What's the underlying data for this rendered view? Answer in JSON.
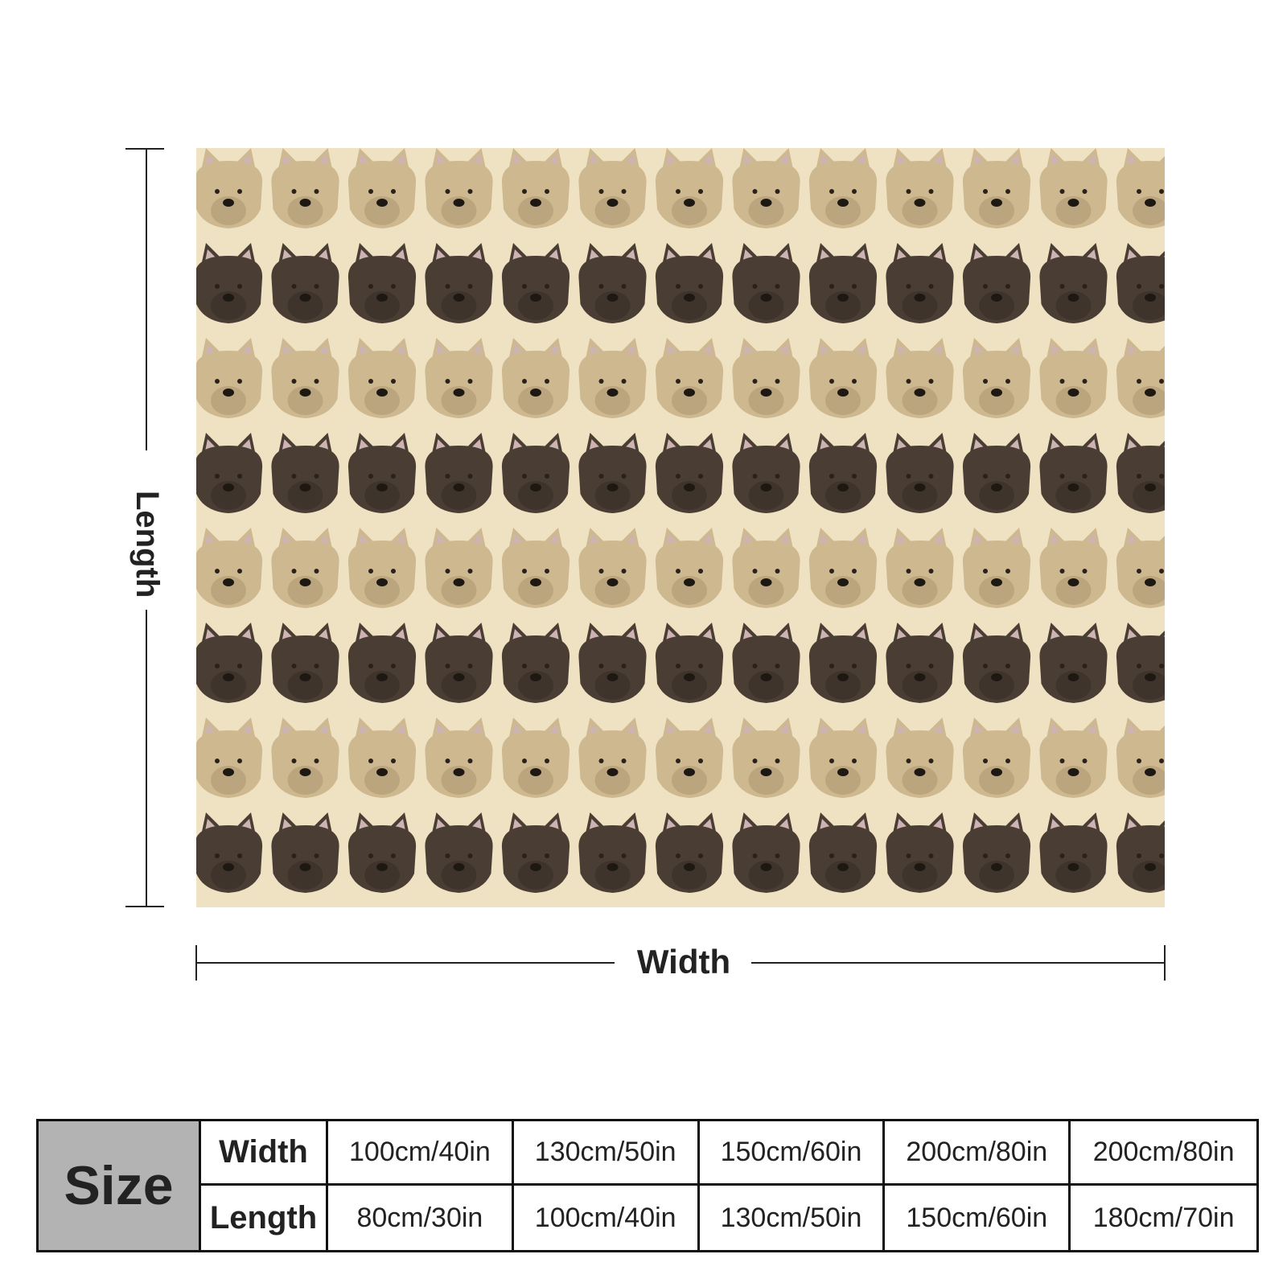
{
  "dimensions": {
    "length_label": "Length",
    "width_label": "Width"
  },
  "blanket": {
    "pattern_rows": 8,
    "pattern_cols": 13,
    "colors": {
      "background": "#efe2c2",
      "tan_dog": "#cdb88f",
      "tan_dog_shade": "#b29d76",
      "dark_dog": "#4a3e34",
      "dark_dog_shade": "#3a3029",
      "ear_inner": "#cdb4b3"
    }
  },
  "size_table": {
    "header": "Size",
    "rows": [
      {
        "label": "Width",
        "values": [
          "100cm/40in",
          "130cm/50in",
          "150cm/60in",
          "200cm/80in",
          "200cm/80in"
        ]
      },
      {
        "label": "Length",
        "values": [
          "80cm/30in",
          "100cm/40in",
          "130cm/50in",
          "150cm/60in",
          "180cm/70in"
        ]
      }
    ]
  }
}
